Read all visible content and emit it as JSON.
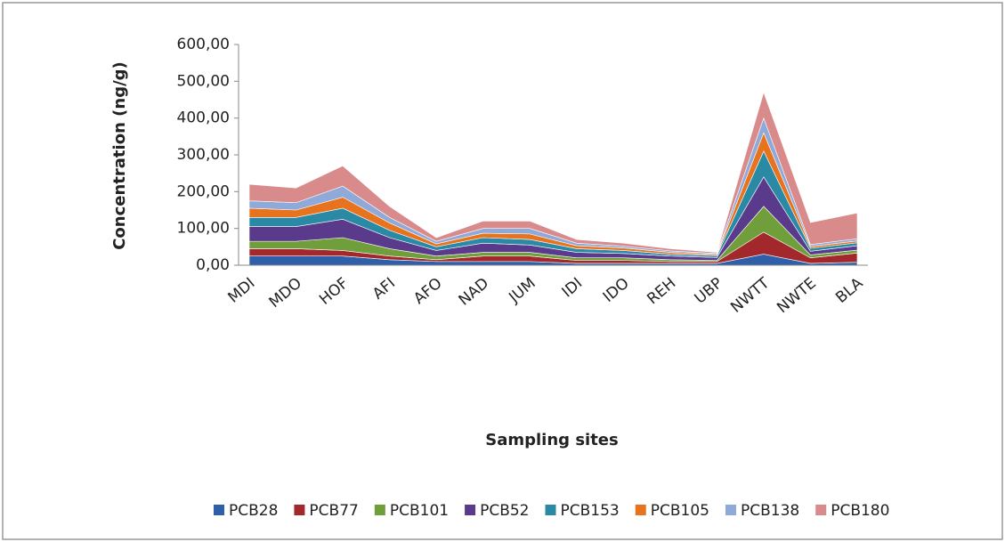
{
  "chart_data": {
    "type": "stacked_area",
    "y_label": "Concentration (ng/g)",
    "x_label": "Sampling sites",
    "categories": [
      "MDI",
      "MDO",
      "HOF",
      "AFI",
      "AFO",
      "NAD",
      "JUM",
      "IDI",
      "IDO",
      "REH",
      "UBP",
      "NWTT",
      "NWTE",
      "BLA"
    ],
    "series": [
      {
        "name": "PCB28",
        "color": "#2e5fa8",
        "values": [
          25,
          25,
          25,
          15,
          10,
          10,
          10,
          5,
          5,
          5,
          5,
          30,
          5,
          8
        ]
      },
      {
        "name": "PCB77",
        "color": "#a3282c",
        "values": [
          20,
          20,
          15,
          10,
          5,
          15,
          15,
          8,
          8,
          5,
          5,
          60,
          15,
          25
        ]
      },
      {
        "name": "PCB101",
        "color": "#6f9e3a",
        "values": [
          20,
          20,
          35,
          20,
          10,
          10,
          10,
          7,
          7,
          5,
          3,
          70,
          8,
          8
        ]
      },
      {
        "name": "PCB52",
        "color": "#5a3a8a",
        "values": [
          40,
          40,
          50,
          30,
          15,
          25,
          20,
          15,
          12,
          10,
          8,
          80,
          10,
          12
        ]
      },
      {
        "name": "PCB153",
        "color": "#2a8aa6",
        "values": [
          25,
          25,
          30,
          20,
          10,
          15,
          15,
          10,
          8,
          5,
          5,
          70,
          8,
          8
        ]
      },
      {
        "name": "PCB105",
        "color": "#e8731e",
        "values": [
          25,
          20,
          30,
          20,
          8,
          12,
          15,
          8,
          7,
          5,
          3,
          50,
          5,
          5
        ]
      },
      {
        "name": "PCB138",
        "color": "#8fa9d9",
        "values": [
          20,
          20,
          30,
          15,
          7,
          13,
          15,
          7,
          5,
          4,
          3,
          40,
          5,
          6
        ]
      },
      {
        "name": "PCB180",
        "color": "#d98b8c",
        "values": [
          45,
          40,
          55,
          30,
          10,
          20,
          20,
          10,
          8,
          6,
          3,
          70,
          60,
          70
        ]
      }
    ],
    "ylim": [
      0,
      600
    ],
    "yticks": [
      {
        "value": 0,
        "label": "0,00"
      },
      {
        "value": 100,
        "label": "100,00"
      },
      {
        "value": 200,
        "label": "200,00"
      },
      {
        "value": 300,
        "label": "300,00"
      },
      {
        "value": 400,
        "label": "400,00"
      },
      {
        "value": 500,
        "label": "500,00"
      },
      {
        "value": 600,
        "label": "600,00"
      }
    ],
    "legend": "bottom"
  }
}
